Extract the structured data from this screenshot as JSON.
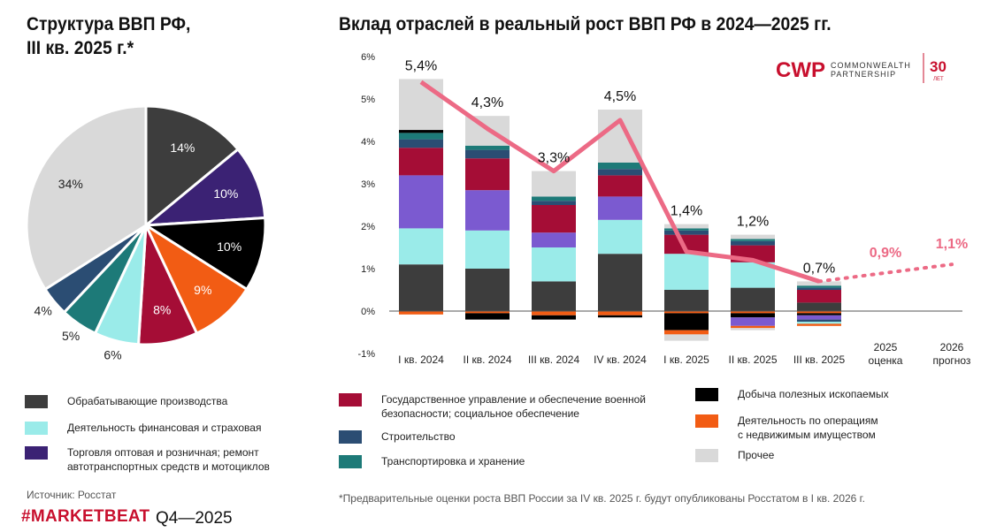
{
  "colors": {
    "manufacturing": "#3d3d3d",
    "finance": "#9aebe9",
    "trade": "#3b2274",
    "trade_bar": "#7b5ad0",
    "government": "#a50d36",
    "construction": "#2b4d73",
    "transport": "#1d7a78",
    "mining": "#000000",
    "realestate": "#f25c14",
    "other": "#d9d9d9",
    "line": "#ec6a85"
  },
  "left": {
    "title_line1": "Структура ВВП РФ,",
    "title_line2": "III кв. 2025 г.*"
  },
  "right": {
    "title": "Вклад отраслей в реальный рост ВВП РФ в 2024—2025 гг."
  },
  "logo": {
    "mark": "CWP",
    "line1": "COMMONWEALTH",
    "line2": "PARTNERSHIP",
    "years": "30",
    "years_sub": "ЛЕТ"
  },
  "legend": {
    "manufacturing": "Обрабатывающие производства",
    "finance": "Деятельность финансовая и страховая",
    "trade_line1": "Торговля оптовая и розничная; ремонт",
    "trade_line2": "автотранспортных средств и мотоциклов",
    "government_line1": "Государственное управление и обеспечение военной",
    "government_line2": "безопасности; социальное обеспечение",
    "construction": "Строительство",
    "transport": "Транспортировка и хранение",
    "mining": "Добыча полезных ископаемых",
    "realestate_line1": "Деятельность по операциям",
    "realestate_line2": "с недвижимым имуществом",
    "other": "Прочее"
  },
  "footer": {
    "source": "Источник: Росстат",
    "brand": "#MARKETBEAT",
    "quarter": "Q4—2025",
    "note": "*Предварительные оценки роста ВВП России за IV кв. 2025 г. будут опубликованы Росстатом в I кв. 2026 г."
  },
  "chart_data": [
    {
      "type": "pie",
      "title": "Структура ВВП РФ, III кв. 2025 г.*",
      "slices": [
        {
          "key": "manufacturing",
          "label": "14%",
          "value": 14
        },
        {
          "key": "trade",
          "label": "10%",
          "value": 10
        },
        {
          "key": "mining",
          "label": "10%",
          "value": 10
        },
        {
          "key": "realestate",
          "label": "9%",
          "value": 9
        },
        {
          "key": "government",
          "label": "8%",
          "value": 8
        },
        {
          "key": "finance",
          "label": "6%",
          "value": 6
        },
        {
          "key": "transport",
          "label": "5%",
          "value": 5
        },
        {
          "key": "construction",
          "label": "4%",
          "value": 4
        },
        {
          "key": "other",
          "label": "34%",
          "value": 34
        }
      ]
    },
    {
      "type": "bar",
      "stacked": true,
      "title": "Вклад отраслей в реальный рост ВВП РФ в 2024—2025 гг.",
      "categories": [
        "I кв. 2024",
        "II кв. 2024",
        "III кв. 2024",
        "IV кв. 2024",
        "I кв. 2025",
        "II кв. 2025",
        "III кв. 2025"
      ],
      "extra_categories": [
        [
          "2025",
          "оценка"
        ],
        [
          "2026",
          "прогноз"
        ]
      ],
      "y_ticks": [
        "6%",
        "5%",
        "4%",
        "3%",
        "2%",
        "1%",
        "0%",
        "-1%"
      ],
      "ylim": [
        -1,
        6
      ],
      "series": [
        {
          "key": "manufacturing",
          "color_key": "manufacturing",
          "values": [
            1.1,
            1.0,
            0.7,
            1.35,
            0.5,
            0.55,
            0.2
          ]
        },
        {
          "key": "finance",
          "color_key": "finance",
          "values": [
            0.85,
            0.9,
            0.8,
            0.8,
            0.85,
            0.6,
            0.0
          ]
        },
        {
          "key": "trade",
          "color_key": "trade_bar",
          "values": [
            1.25,
            0.95,
            0.35,
            0.55,
            0.0,
            0.0,
            0.0
          ]
        },
        {
          "key": "government",
          "color_key": "government",
          "values": [
            0.65,
            0.75,
            0.65,
            0.5,
            0.45,
            0.4,
            0.3
          ]
        },
        {
          "key": "construction",
          "color_key": "construction",
          "values": [
            0.2,
            0.2,
            0.1,
            0.15,
            0.1,
            0.1,
            0.05
          ]
        },
        {
          "key": "transport",
          "color_key": "transport",
          "values": [
            0.15,
            0.1,
            0.1,
            0.15,
            0.05,
            0.05,
            0.05
          ]
        },
        {
          "key": "mining",
          "color_key": "mining",
          "values": [
            0.07,
            0.0,
            0.0,
            0.0,
            0.0,
            0.0,
            0.0
          ]
        },
        {
          "key": "other",
          "color_key": "other",
          "values": [
            1.2,
            0.7,
            0.6,
            1.25,
            0.1,
            0.1,
            0.1
          ]
        }
      ],
      "negatives": [
        {
          "key": "realestate",
          "color_key": "realestate",
          "values": [
            -0.08,
            -0.05,
            -0.1,
            -0.1,
            -0.05,
            -0.05,
            -0.05
          ]
        },
        {
          "key": "mining",
          "color_key": "mining",
          "values": [
            0.0,
            -0.15,
            -0.1,
            -0.05,
            -0.4,
            -0.1,
            -0.05
          ]
        },
        {
          "key": "trade",
          "color_key": "trade_bar",
          "values": [
            0.0,
            0.0,
            0.0,
            0.0,
            0.0,
            -0.2,
            -0.1
          ]
        },
        {
          "key": "construction",
          "color_key": "construction",
          "values": [
            0.0,
            0.0,
            0.0,
            0.0,
            0.0,
            0.0,
            -0.05
          ]
        },
        {
          "key": "finance_neg",
          "color_key": "finance",
          "values": [
            0.0,
            0.0,
            0.0,
            0.0,
            0.0,
            0.0,
            -0.05
          ]
        },
        {
          "key": "realestate2",
          "color_key": "realestate",
          "values": [
            0.0,
            0.0,
            0.0,
            0.0,
            -0.1,
            -0.05,
            -0.05
          ]
        },
        {
          "key": "other_neg",
          "color_key": "other",
          "values": [
            0.0,
            0.0,
            0.0,
            0.0,
            -0.15,
            -0.05,
            0.0
          ]
        }
      ],
      "line": {
        "name": "Рост ВВП",
        "values": [
          5.4,
          4.3,
          3.3,
          4.5,
          1.4,
          1.2,
          0.7
        ],
        "labels": [
          "5,4%",
          "4,3%",
          "3,3%",
          "4,5%",
          "1,4%",
          "1,2%",
          "0,7%"
        ]
      },
      "forecast": {
        "values": [
          0.9,
          1.1
        ],
        "labels": [
          "0,9%",
          "1,1%"
        ]
      }
    }
  ]
}
